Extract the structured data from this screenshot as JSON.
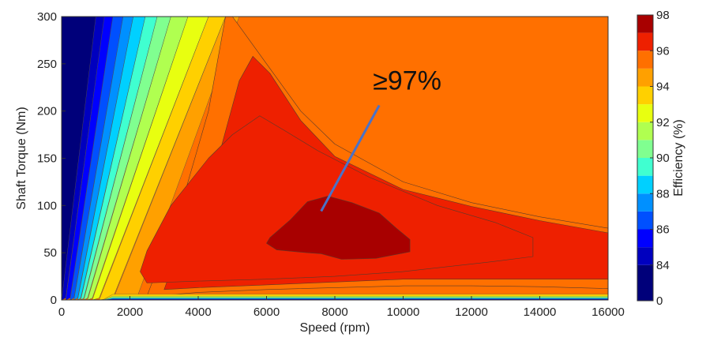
{
  "chart_data": {
    "type": "heatmap",
    "subtype": "filled-contour",
    "title": "",
    "xlabel": "Speed  (rpm)",
    "ylabel": "Shaft Torque  (Nm)",
    "xlim": [
      0,
      16000
    ],
    "ylim": [
      0,
      300
    ],
    "xticks": [
      0,
      2000,
      4000,
      6000,
      8000,
      10000,
      12000,
      14000,
      16000
    ],
    "yticks": [
      0,
      50,
      100,
      150,
      200,
      250,
      300
    ],
    "grid": false,
    "colorbar": {
      "label": "Efficiency (%)",
      "range": [
        82,
        98
      ],
      "ticks": [
        84,
        86,
        88,
        90,
        92,
        94,
        96,
        98
      ],
      "bottom_label": "0",
      "levels": [
        {
          "min": 0,
          "max": 84,
          "color": "#00007a"
        },
        {
          "min": 84,
          "max": 85,
          "color": "#0000bf"
        },
        {
          "min": 85,
          "max": 86,
          "color": "#0000ff"
        },
        {
          "min": 86,
          "max": 87,
          "color": "#0050ff"
        },
        {
          "min": 87,
          "max": 88,
          "color": "#0090ff"
        },
        {
          "min": 88,
          "max": 89,
          "color": "#00d0ff"
        },
        {
          "min": 89,
          "max": 90,
          "color": "#40ffd0"
        },
        {
          "min": 90,
          "max": 91,
          "color": "#80ff90"
        },
        {
          "min": 91,
          "max": 92,
          "color": "#b0ff50"
        },
        {
          "min": 92,
          "max": 93,
          "color": "#e8ff10"
        },
        {
          "min": 93,
          "max": 94,
          "color": "#ffd000"
        },
        {
          "min": 94,
          "max": 95,
          "color": "#ffa000"
        },
        {
          "min": 95,
          "max": 96,
          "color": "#ff7000"
        },
        {
          "min": 96,
          "max": 97,
          "color": "#ee2000"
        },
        {
          "min": 97,
          "max": 98,
          "color": "#a80000"
        }
      ]
    },
    "annotation": {
      "text": "≥97%",
      "arrow_from": [
        9300,
        206
      ],
      "arrow_to": [
        7600,
        94
      ]
    },
    "regions": [
      {
        "level": 95,
        "boundary": [
          [
            5000,
            300
          ],
          [
            6000,
            250
          ],
          [
            7000,
            200
          ],
          [
            8000,
            165
          ],
          [
            10000,
            125
          ],
          [
            12000,
            103
          ],
          [
            14000,
            88
          ],
          [
            16000,
            76
          ],
          [
            16000,
            12
          ],
          [
            14000,
            14
          ],
          [
            12000,
            15
          ],
          [
            10000,
            15
          ],
          [
            8000,
            13
          ],
          [
            6000,
            11
          ],
          [
            4000,
            8
          ],
          [
            3000,
            5
          ],
          [
            2500,
            4
          ],
          [
            3500,
            100
          ],
          [
            4300,
            200
          ],
          [
            4800,
            300
          ]
        ]
      },
      {
        "level": 96,
        "boundary": [
          [
            4600,
            152
          ],
          [
            5200,
            232
          ],
          [
            5600,
            258
          ],
          [
            6100,
            240
          ],
          [
            7000,
            190
          ],
          [
            8000,
            152
          ],
          [
            10000,
            117
          ],
          [
            12000,
            99
          ],
          [
            14000,
            84
          ],
          [
            16000,
            71
          ],
          [
            16000,
            22
          ],
          [
            14000,
            22
          ],
          [
            12000,
            22
          ],
          [
            10000,
            22
          ],
          [
            8000,
            19
          ],
          [
            6000,
            16
          ],
          [
            4000,
            13
          ],
          [
            3000,
            11
          ],
          [
            3500,
            60
          ],
          [
            4100,
            120
          ]
        ]
      },
      {
        "level": 96.5,
        "boundary": [
          [
            2300,
            30
          ],
          [
            2500,
            52
          ],
          [
            3200,
            100
          ],
          [
            4300,
            150
          ],
          [
            5000,
            175
          ],
          [
            5800,
            195
          ],
          [
            6500,
            180
          ],
          [
            7500,
            158
          ],
          [
            9000,
            130
          ],
          [
            11000,
            100
          ],
          [
            12700,
            82
          ],
          [
            13800,
            66
          ],
          [
            13800,
            46
          ],
          [
            12500,
            40
          ],
          [
            10000,
            30
          ],
          [
            8000,
            25
          ],
          [
            6000,
            22
          ],
          [
            4000,
            20
          ],
          [
            2500,
            18
          ]
        ]
      },
      {
        "level": 97,
        "boundary": [
          [
            6100,
            66
          ],
          [
            6700,
            85
          ],
          [
            7200,
            104
          ],
          [
            7800,
            110
          ],
          [
            8500,
            103
          ],
          [
            9300,
            92
          ],
          [
            9800,
            76
          ],
          [
            10200,
            64
          ],
          [
            10200,
            51
          ],
          [
            9200,
            44
          ],
          [
            8200,
            43
          ],
          [
            7600,
            49
          ],
          [
            7200,
            50
          ],
          [
            6300,
            53
          ],
          [
            6000,
            60
          ]
        ]
      }
    ]
  }
}
